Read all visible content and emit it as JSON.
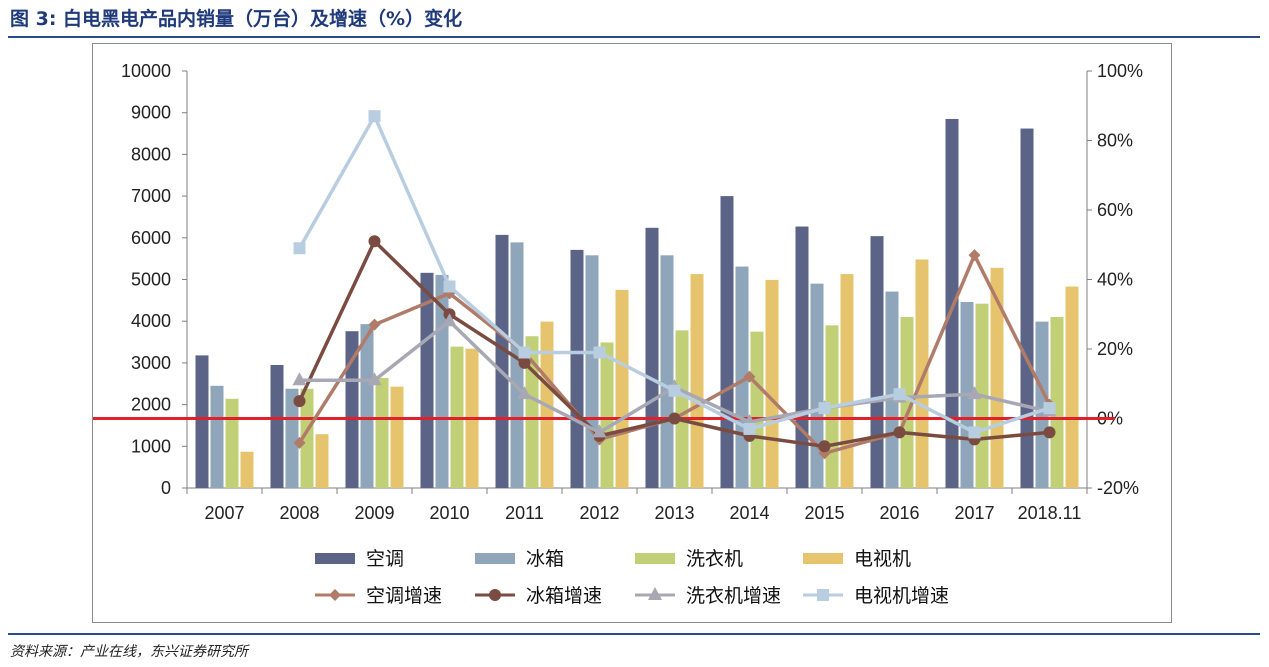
{
  "figure": {
    "title": "图 3: 白电黑电产品内销量（万台）及增速（%）变化",
    "source": "资料来源：产业在线，东兴证券研究所"
  },
  "chart_data": {
    "type": "bar",
    "categories": [
      "2007",
      "2008",
      "2009",
      "2010",
      "2011",
      "2012",
      "2013",
      "2014",
      "2015",
      "2016",
      "2017",
      "2018.11"
    ],
    "y_left": {
      "range": [
        0,
        10000
      ],
      "ticks": [
        "0",
        "1000",
        "2000",
        "3000",
        "4000",
        "5000",
        "6000",
        "7000",
        "8000",
        "9000",
        "10000"
      ]
    },
    "y_right": {
      "range": [
        -20,
        100
      ],
      "ticks": [
        "-20%",
        "0%",
        "20%",
        "40%",
        "60%",
        "80%",
        "100%"
      ]
    },
    "zero_line": {
      "value": 0,
      "axis": "right",
      "color": "#e0202a"
    },
    "series": [
      {
        "name": "空调",
        "kind": "bar",
        "color": "#5b6487",
        "values": [
          3180,
          2950,
          3760,
          5160,
          6070,
          5710,
          6240,
          7000,
          6270,
          6040,
          8850,
          8620
        ]
      },
      {
        "name": "冰箱",
        "kind": "bar",
        "color": "#8ea5ba",
        "values": [
          2450,
          2380,
          3930,
          5110,
          5890,
          5580,
          5580,
          5310,
          4900,
          4710,
          4460,
          3990
        ]
      },
      {
        "name": "洗衣机",
        "kind": "bar",
        "color": "#c1cf76",
        "values": [
          2140,
          2380,
          2640,
          3390,
          3640,
          3490,
          3780,
          3750,
          3900,
          4100,
          4420,
          4100
        ]
      },
      {
        "name": "电视机",
        "kind": "bar",
        "color": "#e6c46e",
        "values": [
          870,
          1290,
          2430,
          3340,
          3990,
          4750,
          5130,
          4990,
          5130,
          5480,
          5280,
          4830
        ]
      },
      {
        "name": "空调增速",
        "kind": "line",
        "axis": "right",
        "color": "#b07b68",
        "marker": "diamond",
        "values": [
          null,
          -7,
          27,
          36,
          19,
          -6,
          0,
          12,
          -10,
          -4,
          47,
          4
        ]
      },
      {
        "name": "冰箱增速",
        "kind": "line",
        "axis": "right",
        "color": "#7a4b40",
        "marker": "circle",
        "values": [
          null,
          5,
          51,
          30,
          16,
          -5,
          0,
          -5,
          -8,
          -4,
          -6,
          -4
        ]
      },
      {
        "name": "洗衣机增速",
        "kind": "line",
        "axis": "right",
        "color": "#a8a8b5",
        "marker": "triangle",
        "values": [
          null,
          11,
          11,
          28,
          7,
          -4,
          9,
          -1,
          3,
          6,
          7,
          2
        ]
      },
      {
        "name": "电视机增速",
        "kind": "line",
        "axis": "right",
        "color": "#b9cde0",
        "marker": "square",
        "values": [
          null,
          49,
          87,
          38,
          19,
          19,
          8,
          -3,
          3,
          7,
          -4,
          3
        ]
      }
    ]
  }
}
